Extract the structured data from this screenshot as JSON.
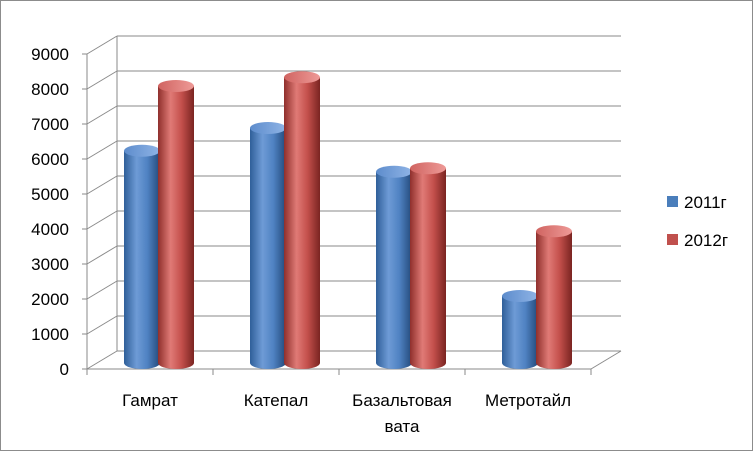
{
  "chart_data": {
    "type": "bar",
    "title": "",
    "xlabel": "",
    "ylabel": "",
    "categories": [
      [
        "Гамрат"
      ],
      [
        "Катепал"
      ],
      [
        "Базальтовая",
        "вата"
      ],
      [
        "Метротайл"
      ]
    ],
    "series": [
      {
        "name": "2011г",
        "values": [
          6150,
          6800,
          5550,
          2000
        ],
        "color": "#4a7ebb"
      },
      {
        "name": "2012г",
        "values": [
          8000,
          8250,
          5650,
          3850
        ],
        "color": "#c0504d"
      }
    ],
    "ylim": [
      0,
      9000
    ],
    "yticks": [
      0,
      1000,
      2000,
      3000,
      4000,
      5000,
      6000,
      7000,
      8000,
      9000
    ],
    "grid": true,
    "legend_position": "right",
    "style": "3d-cylinder"
  }
}
